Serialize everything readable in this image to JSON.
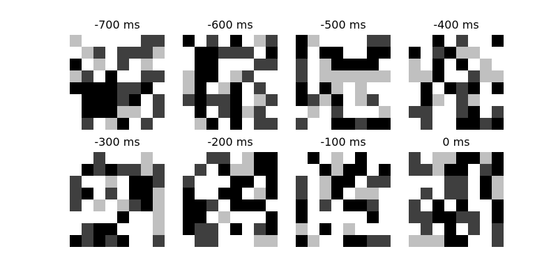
{
  "chart_data": {
    "type": "heatmap",
    "grid_size": [
      8,
      8
    ],
    "levels": {
      "0": "#ffffff",
      "1": "#c0c0c0",
      "2": "#3f3f3f",
      "3": "#000000"
    },
    "panels": [
      {
        "title": "-700 ms",
        "matrix": [
          [
            1,
            0,
            0,
            0,
            0,
            0,
            2,
            2
          ],
          [
            0,
            1,
            2,
            0,
            2,
            2,
            2,
            1
          ],
          [
            3,
            0,
            1,
            0,
            2,
            0,
            1,
            0
          ],
          [
            1,
            2,
            0,
            3,
            0,
            0,
            2,
            2
          ],
          [
            3,
            3,
            3,
            3,
            2,
            2,
            3,
            0
          ],
          [
            0,
            3,
            3,
            3,
            2,
            3,
            0,
            2
          ],
          [
            0,
            3,
            3,
            3,
            1,
            1,
            0,
            2
          ],
          [
            0,
            2,
            0,
            1,
            3,
            0,
            2,
            0
          ]
        ]
      },
      {
        "title": "-600 ms",
        "matrix": [
          [
            3,
            0,
            2,
            0,
            3,
            0,
            1,
            2
          ],
          [
            0,
            3,
            3,
            2,
            2,
            2,
            0,
            3
          ],
          [
            0,
            3,
            3,
            0,
            0,
            0,
            2,
            2
          ],
          [
            1,
            3,
            3,
            0,
            1,
            2,
            0,
            0
          ],
          [
            1,
            3,
            0,
            1,
            3,
            0,
            2,
            0
          ],
          [
            2,
            3,
            2,
            2,
            3,
            0,
            1,
            2
          ],
          [
            0,
            3,
            0,
            2,
            3,
            1,
            2,
            0
          ],
          [
            0,
            1,
            3,
            0,
            3,
            0,
            2,
            2
          ]
        ]
      },
      {
        "title": "-500 ms",
        "matrix": [
          [
            3,
            1,
            0,
            0,
            0,
            0,
            2,
            2
          ],
          [
            3,
            0,
            3,
            3,
            0,
            0,
            3,
            3
          ],
          [
            2,
            0,
            1,
            3,
            3,
            3,
            3,
            0
          ],
          [
            2,
            0,
            1,
            1,
            1,
            1,
            1,
            1
          ],
          [
            3,
            0,
            3,
            1,
            0,
            1,
            0,
            0
          ],
          [
            3,
            2,
            1,
            3,
            0,
            1,
            2,
            0
          ],
          [
            0,
            1,
            0,
            2,
            0,
            0,
            0,
            1
          ],
          [
            2,
            0,
            0,
            3,
            3,
            2,
            3,
            3
          ]
        ]
      },
      {
        "title": "-400 ms",
        "matrix": [
          [
            0,
            0,
            3,
            0,
            2,
            0,
            0,
            3
          ],
          [
            3,
            0,
            2,
            3,
            1,
            1,
            0,
            0
          ],
          [
            1,
            0,
            3,
            0,
            3,
            0,
            1,
            0
          ],
          [
            1,
            1,
            3,
            0,
            0,
            2,
            1,
            1
          ],
          [
            0,
            3,
            0,
            3,
            2,
            3,
            0,
            3
          ],
          [
            0,
            3,
            1,
            0,
            2,
            1,
            0,
            0
          ],
          [
            2,
            2,
            0,
            0,
            2,
            3,
            0,
            2
          ],
          [
            0,
            2,
            0,
            0,
            3,
            3,
            2,
            3
          ]
        ]
      },
      {
        "title": "-300 ms",
        "matrix": [
          [
            0,
            0,
            2,
            0,
            0,
            0,
            1,
            0
          ],
          [
            0,
            3,
            2,
            3,
            2,
            2,
            1,
            2
          ],
          [
            2,
            0,
            0,
            1,
            0,
            3,
            3,
            2
          ],
          [
            2,
            3,
            0,
            2,
            0,
            3,
            3,
            1
          ],
          [
            2,
            0,
            1,
            0,
            1,
            2,
            3,
            1
          ],
          [
            0,
            0,
            0,
            0,
            3,
            0,
            0,
            1
          ],
          [
            0,
            2,
            3,
            3,
            0,
            0,
            0,
            1
          ],
          [
            3,
            2,
            3,
            2,
            3,
            0,
            0,
            2
          ]
        ]
      },
      {
        "title": "-200 ms",
        "matrix": [
          [
            0,
            0,
            2,
            2,
            0,
            1,
            3,
            3
          ],
          [
            0,
            2,
            0,
            3,
            1,
            1,
            3,
            3
          ],
          [
            2,
            0,
            0,
            0,
            3,
            3,
            0,
            3
          ],
          [
            3,
            0,
            0,
            3,
            3,
            0,
            1,
            3
          ],
          [
            3,
            3,
            2,
            0,
            3,
            3,
            3,
            0
          ],
          [
            3,
            3,
            0,
            1,
            0,
            0,
            0,
            3
          ],
          [
            3,
            2,
            2,
            0,
            3,
            0,
            2,
            3
          ],
          [
            0,
            2,
            2,
            0,
            0,
            0,
            1,
            1
          ]
        ]
      },
      {
        "title": "-100 ms",
        "matrix": [
          [
            0,
            3,
            0,
            1,
            0,
            3,
            0,
            0
          ],
          [
            0,
            0,
            3,
            1,
            3,
            3,
            0,
            3
          ],
          [
            2,
            0,
            1,
            3,
            3,
            0,
            2,
            2
          ],
          [
            2,
            0,
            1,
            3,
            0,
            1,
            1,
            0
          ],
          [
            3,
            0,
            2,
            0,
            3,
            3,
            2,
            0
          ],
          [
            3,
            0,
            0,
            0,
            0,
            0,
            3,
            0
          ],
          [
            1,
            0,
            3,
            0,
            1,
            0,
            0,
            0
          ],
          [
            3,
            1,
            0,
            0,
            3,
            3,
            2,
            2
          ]
        ]
      },
      {
        "title": "0 ms",
        "matrix": [
          [
            2,
            0,
            1,
            1,
            3,
            3,
            1,
            3
          ],
          [
            2,
            2,
            1,
            3,
            3,
            0,
            2,
            3
          ],
          [
            0,
            0,
            0,
            2,
            2,
            0,
            3,
            1
          ],
          [
            0,
            2,
            0,
            2,
            2,
            0,
            3,
            1
          ],
          [
            2,
            0,
            3,
            0,
            3,
            0,
            0,
            3
          ],
          [
            2,
            2,
            3,
            3,
            2,
            2,
            0,
            3
          ],
          [
            0,
            2,
            0,
            3,
            0,
            2,
            0,
            2
          ],
          [
            1,
            1,
            1,
            3,
            3,
            0,
            0,
            2
          ]
        ]
      }
    ]
  }
}
